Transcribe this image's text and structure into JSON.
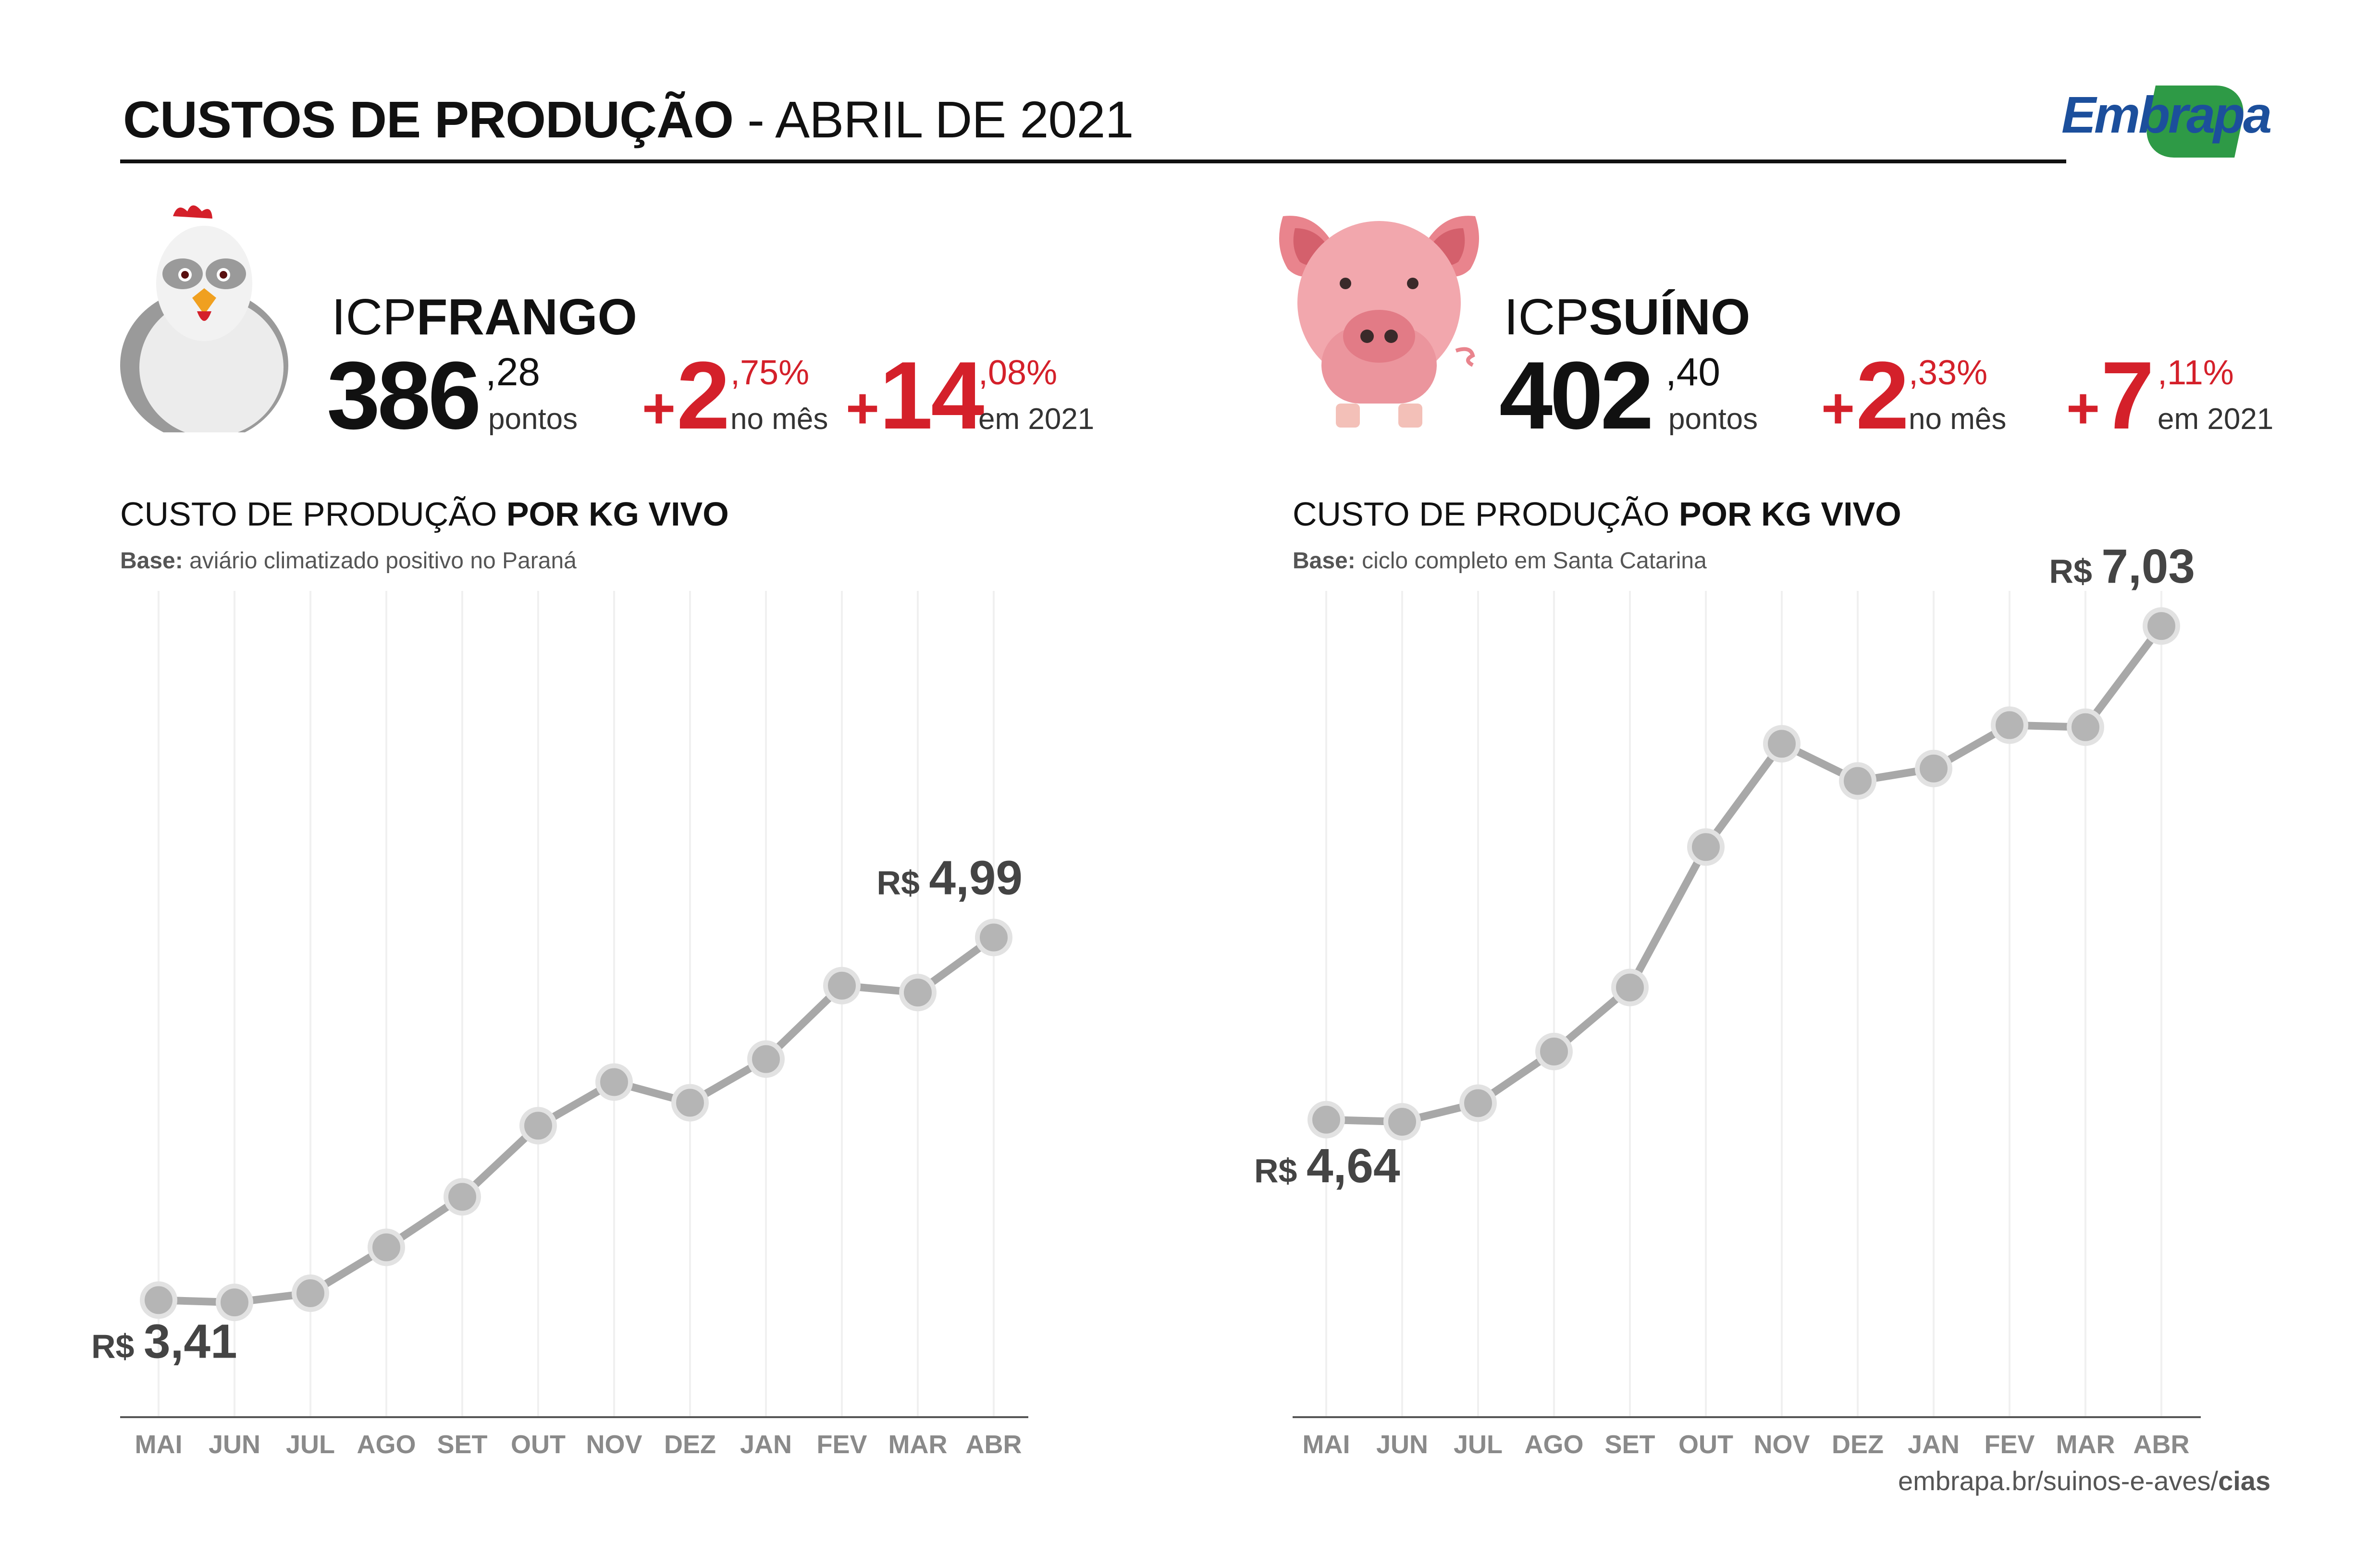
{
  "header": {
    "title_bold": "CUSTOS DE PRODUÇÃO",
    "title_rest": "- ABRIL DE 2021",
    "logo": "Embrapa"
  },
  "frango": {
    "icon": "chicken-icon",
    "icp_prefix": "ICP",
    "icp_name": "FRANGO",
    "index_int": "386",
    "index_dec": ",28",
    "index_unit": "pontos",
    "month_plus": "+",
    "month_int": "2",
    "month_dec": ",75%",
    "month_label": "no mês",
    "year_plus": "+",
    "year_int": "14",
    "year_dec": ",08%",
    "year_label": "em 2021",
    "section_title": "CUSTO DE PRODUÇÃO",
    "section_title_bold": "POR KG VIVO",
    "base_label": "Base:",
    "base_text": "aviário climatizado positivo no Paraná",
    "first_label_prefix": "R$",
    "first_label_value": "3,41",
    "last_label_prefix": "R$",
    "last_label_value": "4,99"
  },
  "suino": {
    "icon": "pig-icon",
    "icp_prefix": "ICP",
    "icp_name": "SUÍNO",
    "index_int": "402",
    "index_dec": ",40",
    "index_unit": "pontos",
    "month_plus": "+",
    "month_int": "2",
    "month_dec": ",33%",
    "month_label": "no mês",
    "year_plus": "+",
    "year_int": "7",
    "year_dec": ",11%",
    "year_label": "em 2021",
    "section_title": "CUSTO DE PRODUÇÃO",
    "section_title_bold": "POR KG VIVO",
    "base_label": "Base:",
    "base_text": "ciclo completo em Santa Catarina",
    "first_label_prefix": "R$",
    "first_label_value": "4,64",
    "last_label_prefix": "R$",
    "last_label_value": "7,03"
  },
  "footer": {
    "text": "embrapa.br/suinos-e-aves/",
    "bold": "cias"
  },
  "colors": {
    "accent_red": "#d4202a",
    "line_gray": "#a8a8a8",
    "marker_gray": "#b5b5b5",
    "grid": "#f0f0f0",
    "brand_blue": "#1c4f9c",
    "brand_green": "#2e9a46"
  },
  "chart_data": [
    {
      "type": "line",
      "categories": [
        "MAI",
        "JUN",
        "JUL",
        "AGO",
        "SET",
        "OUT",
        "NOV",
        "DEZ",
        "JAN",
        "FEV",
        "MAR",
        "ABR"
      ],
      "values": [
        3.41,
        3.4,
        3.44,
        3.64,
        3.86,
        4.17,
        4.36,
        4.27,
        4.46,
        4.78,
        4.75,
        4.99
      ],
      "ylim": [
        2.9,
        6.5
      ],
      "grid": "vertical",
      "annotations": [
        {
          "index": 0,
          "text": "R$ 3,41"
        },
        {
          "index": 11,
          "text": "R$ 4,99"
        }
      ]
    },
    {
      "type": "line",
      "categories": [
        "MAI",
        "JUN",
        "JUL",
        "AGO",
        "SET",
        "OUT",
        "NOV",
        "DEZ",
        "JAN",
        "FEV",
        "MAR",
        "ABR"
      ],
      "values": [
        4.64,
        4.63,
        4.72,
        4.97,
        5.28,
        5.96,
        6.46,
        6.28,
        6.34,
        6.55,
        6.54,
        7.03
      ],
      "ylim": [
        3.2,
        7.2
      ],
      "grid": "vertical",
      "annotations": [
        {
          "index": 0,
          "text": "R$ 4,64"
        },
        {
          "index": 11,
          "text": "R$ 7,03"
        }
      ]
    }
  ]
}
